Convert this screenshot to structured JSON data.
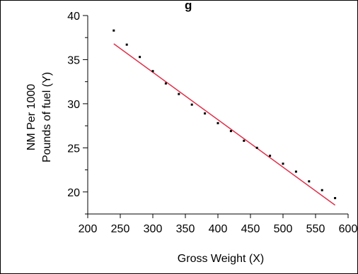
{
  "chart_data": {
    "type": "scatter",
    "title": "g",
    "xlabel": "Gross Weight (X)",
    "ylabel_line1": "NM Per 1000",
    "ylabel_line2": "Pounds of fuel (Y)",
    "xlim": [
      200,
      600
    ],
    "ylim": [
      17.5,
      40
    ],
    "x_ticks": [
      200,
      250,
      300,
      350,
      400,
      450,
      500,
      550,
      600
    ],
    "y_ticks": [
      20,
      25,
      30,
      35,
      40
    ],
    "y_minor_ticks": [
      17.5,
      22.5,
      27.5,
      32.5,
      37.5
    ],
    "grid": false,
    "series": [
      {
        "type": "scatter",
        "color": "#000000",
        "points": [
          [
            240,
            38.3
          ],
          [
            260,
            36.7
          ],
          [
            280,
            35.3
          ],
          [
            300,
            33.7
          ],
          [
            320,
            32.3
          ],
          [
            340,
            31.1
          ],
          [
            360,
            29.9
          ],
          [
            380,
            28.9
          ],
          [
            400,
            27.8
          ],
          [
            420,
            26.9
          ],
          [
            440,
            25.8
          ],
          [
            460,
            25.0
          ],
          [
            480,
            24.1
          ],
          [
            500,
            23.2
          ],
          [
            520,
            22.3
          ],
          [
            540,
            21.2
          ],
          [
            560,
            20.2
          ],
          [
            580,
            19.3
          ]
        ]
      },
      {
        "type": "line",
        "color": "#e0304a",
        "points": [
          [
            240,
            36.8
          ],
          [
            580,
            18.5
          ]
        ]
      }
    ]
  }
}
